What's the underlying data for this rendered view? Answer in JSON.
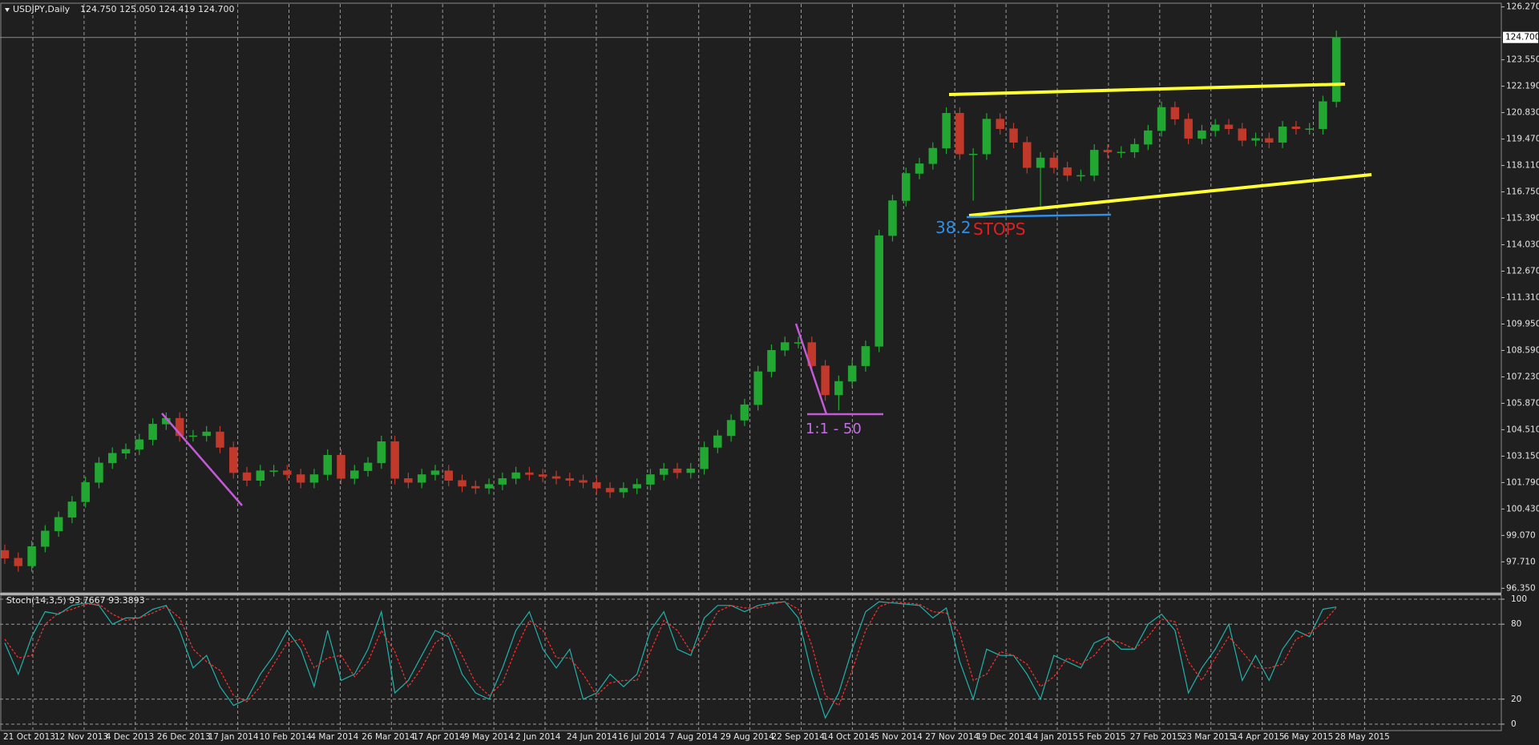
{
  "chart_data": [
    {
      "type": "candlestick",
      "title": "USDJPY,Daily",
      "subtitle": "124.750 125.050 124.419 124.700",
      "up_color": "#22a832",
      "down_color": "#c0392b",
      "open": [
        98.3,
        97.9,
        97.5,
        98.5,
        99.3,
        100.0,
        100.8,
        101.8,
        102.8,
        103.3,
        103.5,
        104.0,
        104.8,
        105.1,
        104.2,
        104.2,
        104.4,
        103.6,
        102.3,
        101.9,
        102.4,
        102.4,
        102.2,
        101.8,
        102.2,
        103.2,
        102.0,
        102.4,
        102.8,
        103.9,
        102.0,
        101.8,
        102.2,
        102.4,
        101.9,
        101.6,
        101.5,
        101.7,
        102.0,
        102.3,
        102.2,
        102.1,
        102.0,
        101.9,
        101.8,
        101.5,
        101.3,
        101.5,
        101.7,
        102.2,
        102.5,
        102.3,
        102.5,
        103.6,
        104.2,
        105.0,
        105.8,
        107.5,
        108.6,
        109.0,
        109.0,
        107.8,
        106.3,
        107.0,
        107.8,
        108.8,
        114.5,
        116.3,
        117.7,
        118.2,
        119.0,
        120.8,
        118.7,
        118.7,
        120.5,
        120.0,
        119.3,
        118.0,
        118.5,
        118.0,
        117.6,
        117.6,
        118.9,
        118.8,
        118.8,
        119.2,
        119.9,
        121.1,
        120.5,
        119.5,
        119.9,
        120.2,
        120.0,
        119.4,
        119.5,
        119.3,
        120.1,
        120.0,
        120.0,
        121.4
      ],
      "high": [
        98.6,
        98.2,
        98.8,
        99.6,
        100.3,
        101.1,
        102.1,
        103.1,
        103.6,
        103.8,
        104.3,
        105.1,
        105.4,
        105.4,
        104.5,
        104.7,
        104.7,
        103.9,
        102.6,
        102.7,
        102.7,
        102.7,
        102.5,
        102.5,
        103.5,
        103.5,
        102.7,
        103.1,
        104.2,
        104.2,
        102.3,
        102.5,
        102.7,
        102.7,
        102.2,
        101.9,
        102.0,
        102.3,
        102.6,
        102.6,
        102.5,
        102.4,
        102.3,
        102.2,
        102.1,
        101.8,
        101.8,
        102.0,
        102.5,
        102.8,
        102.8,
        102.8,
        103.9,
        104.5,
        105.3,
        106.1,
        107.8,
        108.9,
        109.3,
        109.3,
        109.3,
        108.1,
        107.3,
        108.1,
        109.1,
        114.8,
        116.6,
        118.0,
        118.5,
        119.3,
        121.1,
        121.1,
        119.0,
        120.8,
        120.8,
        120.3,
        119.6,
        118.8,
        118.8,
        118.3,
        117.9,
        119.2,
        119.2,
        119.1,
        119.5,
        120.2,
        121.4,
        121.4,
        120.8,
        120.2,
        120.5,
        120.5,
        120.3,
        119.8,
        119.8,
        120.4,
        120.4,
        120.3,
        121.7,
        125.05
      ],
      "low": [
        97.6,
        97.2,
        97.2,
        98.2,
        99.0,
        99.7,
        100.5,
        101.5,
        102.5,
        103.0,
        103.2,
        103.7,
        104.5,
        103.9,
        103.9,
        103.9,
        103.3,
        102.0,
        101.6,
        101.6,
        102.1,
        101.9,
        101.5,
        101.5,
        101.9,
        101.7,
        101.7,
        102.1,
        102.5,
        101.7,
        101.5,
        101.5,
        101.9,
        101.6,
        101.3,
        101.2,
        101.2,
        101.4,
        101.7,
        101.9,
        101.8,
        101.7,
        101.6,
        101.5,
        101.2,
        101.0,
        101.0,
        101.2,
        101.4,
        101.9,
        102.0,
        102.0,
        102.2,
        103.3,
        103.9,
        104.7,
        105.5,
        107.2,
        108.3,
        108.7,
        107.5,
        106.0,
        105.5,
        106.7,
        107.5,
        108.5,
        114.2,
        116.0,
        117.4,
        117.9,
        118.7,
        118.4,
        116.3,
        118.4,
        119.7,
        119.0,
        117.7,
        116.0,
        117.7,
        117.3,
        117.3,
        117.3,
        118.5,
        118.5,
        118.5,
        118.9,
        119.6,
        120.2,
        119.2,
        119.2,
        119.6,
        119.7,
        119.1,
        119.1,
        119.0,
        119.0,
        119.7,
        119.7,
        119.7,
        121.1
      ],
      "close": [
        97.9,
        97.5,
        98.5,
        99.3,
        100.0,
        100.8,
        101.8,
        102.8,
        103.3,
        103.5,
        104.0,
        104.8,
        105.1,
        104.2,
        104.2,
        104.4,
        103.6,
        102.3,
        101.9,
        102.4,
        102.4,
        102.2,
        101.8,
        102.2,
        103.2,
        102.0,
        102.4,
        102.8,
        103.9,
        102.0,
        101.8,
        102.2,
        102.4,
        101.9,
        101.6,
        101.5,
        101.7,
        102.0,
        102.3,
        102.2,
        102.1,
        102.0,
        101.9,
        101.8,
        101.5,
        101.3,
        101.5,
        101.7,
        102.2,
        102.5,
        102.3,
        102.5,
        103.6,
        104.2,
        105.0,
        105.8,
        107.5,
        108.6,
        109.0,
        109.0,
        107.8,
        106.3,
        107.0,
        107.8,
        108.8,
        114.5,
        116.3,
        117.7,
        118.2,
        119.0,
        120.8,
        118.7,
        118.7,
        120.5,
        120.0,
        119.3,
        118.0,
        118.5,
        118.0,
        117.6,
        117.6,
        118.9,
        118.8,
        118.8,
        119.2,
        119.9,
        121.1,
        120.5,
        119.5,
        119.9,
        120.2,
        120.0,
        119.4,
        119.5,
        119.3,
        120.1,
        120.0,
        120.0,
        121.4,
        124.7
      ],
      "last_price": {
        "value": 124.7,
        "label": "124.700"
      },
      "ylim": [
        96.2,
        126.42
      ],
      "yticks": [
        {
          "value": 126.27,
          "label": "126.270"
        },
        {
          "value": 123.55,
          "label": "123.550"
        },
        {
          "value": 122.19,
          "label": "122.190"
        },
        {
          "value": 120.83,
          "label": "120.830"
        },
        {
          "value": 119.47,
          "label": "119.470"
        },
        {
          "value": 118.11,
          "label": "118.110"
        },
        {
          "value": 116.75,
          "label": "116.750"
        },
        {
          "value": 115.39,
          "label": "115.390"
        },
        {
          "value": 114.03,
          "label": "114.030"
        },
        {
          "value": 112.67,
          "label": "112.670"
        },
        {
          "value": 111.31,
          "label": "111.310"
        },
        {
          "value": 109.95,
          "label": "109.950"
        },
        {
          "value": 108.59,
          "label": "108.590"
        },
        {
          "value": 107.23,
          "label": "107.230"
        },
        {
          "value": 105.87,
          "label": "105.870"
        },
        {
          "value": 104.51,
          "label": "104.510"
        },
        {
          "value": 103.15,
          "label": "103.150"
        },
        {
          "value": 101.79,
          "label": "101.790"
        },
        {
          "value": 100.43,
          "label": "100.430"
        },
        {
          "value": 99.07,
          "label": "99.070"
        },
        {
          "value": 97.71,
          "label": "97.710"
        },
        {
          "value": 96.35,
          "label": "96.350"
        }
      ],
      "x_labels": [
        "21 Oct 2013",
        "12 Nov 2013",
        "4 Dec 2013",
        "26 Dec 2013",
        "17 Jan 2014",
        "10 Feb 2014",
        "4 Mar 2014",
        "26 Mar 2014",
        "17 Apr 2014",
        "9 May 2014",
        "2 Jun 2014",
        "24 Jun 2014",
        "16 Jul 2014",
        "7 Aug 2014",
        "29 Aug 2014",
        "22 Sep 2014",
        "14 Oct 2014",
        "5 Nov 2014",
        "27 Nov 2014",
        "19 Dec 2014",
        "14 Jan 2015",
        "5 Feb 2015",
        "27 Feb 2015",
        "23 Mar 2015",
        "14 Apr 2015",
        "6 May 2015",
        "28 May 2015"
      ],
      "annotations": [
        "38.2",
        "STOPS",
        "1:1 - 50"
      ],
      "grid": true
    },
    {
      "type": "line",
      "title": "Stoch(14,3,5) 93.7667 93.3893",
      "series": [
        {
          "name": "Main",
          "color": "#20b2aa",
          "values": [
            65,
            40,
            70,
            90,
            88,
            95,
            97,
            95,
            80,
            85,
            85,
            92,
            95,
            75,
            45,
            55,
            30,
            15,
            20,
            40,
            55,
            75,
            60,
            30,
            75,
            35,
            40,
            60,
            90,
            25,
            35,
            55,
            75,
            70,
            40,
            25,
            20,
            45,
            75,
            90,
            60,
            45,
            60,
            20,
            25,
            40,
            30,
            40,
            75,
            90,
            60,
            55,
            85,
            95,
            95,
            90,
            95,
            97,
            98,
            85,
            40,
            5,
            25,
            60,
            90,
            98,
            97,
            96,
            95,
            85,
            93,
            50,
            20,
            60,
            55,
            55,
            40,
            20,
            55,
            50,
            45,
            65,
            70,
            60,
            60,
            80,
            88,
            75,
            25,
            45,
            60,
            80,
            35,
            55,
            35,
            60,
            75,
            70,
            92,
            93.7667
          ]
        },
        {
          "name": "Signal",
          "color": "#ff3030",
          "values": [
            68,
            53,
            55,
            80,
            89,
            92,
            96,
            96,
            88,
            83,
            85,
            89,
            94,
            85,
            60,
            50,
            43,
            23,
            18,
            30,
            48,
            65,
            68,
            45,
            53,
            55,
            38,
            50,
            75,
            58,
            30,
            45,
            65,
            73,
            55,
            33,
            23,
            33,
            60,
            83,
            75,
            53,
            53,
            40,
            23,
            33,
            35,
            35,
            58,
            83,
            75,
            58,
            70,
            90,
            95,
            93,
            93,
            96,
            98,
            92,
            63,
            23,
            15,
            43,
            75,
            94,
            98,
            97,
            96,
            90,
            89,
            72,
            35,
            40,
            58,
            55,
            48,
            30,
            38,
            53,
            48,
            55,
            68,
            65,
            60,
            70,
            84,
            82,
            50,
            35,
            53,
            70,
            58,
            45,
            45,
            48,
            68,
            73,
            81,
            93.3893
          ]
        }
      ],
      "ylim": [
        -4.5,
        103.2
      ],
      "yticks": [
        100,
        80,
        20,
        0
      ],
      "grid": true
    }
  ]
}
